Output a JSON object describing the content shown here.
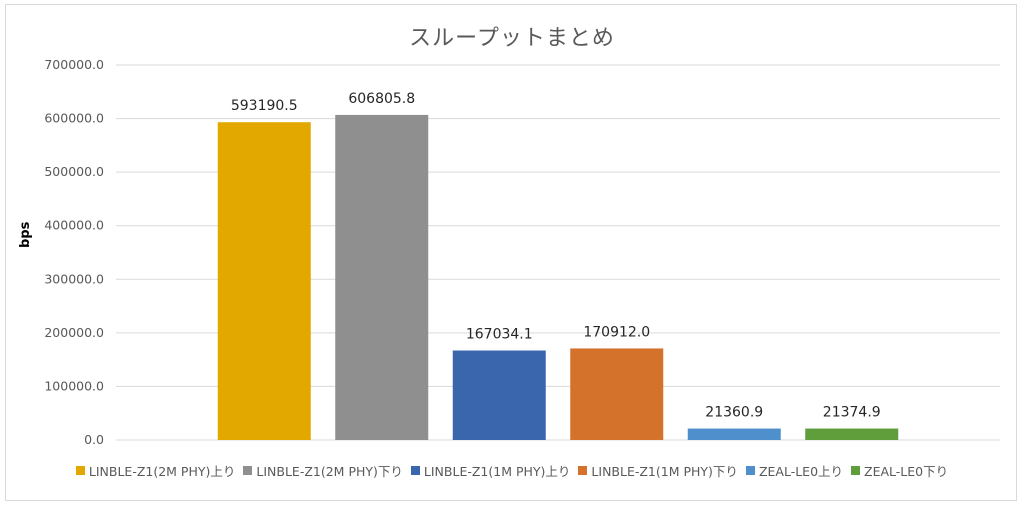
{
  "chart_data": {
    "type": "bar",
    "title": "スループットまとめ",
    "xlabel": "",
    "ylabel": "bps",
    "ylim": [
      0,
      700000
    ],
    "yticks": [
      "0.0",
      "100000.0",
      "200000.0",
      "300000.0",
      "400000.0",
      "500000.0",
      "600000.0",
      "700000.0"
    ],
    "grid": true,
    "legend_position": "bottom",
    "series": [
      {
        "name": "LINBLE-Z1(2M PHY)上り",
        "value": 593190.5,
        "label": "593190.5",
        "color": "#E2A800"
      },
      {
        "name": "LINBLE-Z1(2M PHY)下り",
        "value": 606805.8,
        "label": "606805.8",
        "color": "#8F8F8F"
      },
      {
        "name": "LINBLE-Z1(1M PHY)上り",
        "value": 167034.1,
        "label": "167034.1",
        "color": "#3A66AE"
      },
      {
        "name": "LINBLE-Z1(1M PHY)下り",
        "value": 170912.0,
        "label": "170912.0",
        "color": "#D4712A"
      },
      {
        "name": "ZEAL-LE0上り",
        "value": 21360.9,
        "label": "21360.9",
        "color": "#4E8FCC"
      },
      {
        "name": "ZEAL-LE0下り",
        "value": 21374.9,
        "label": "21374.9",
        "color": "#5F9E3A"
      }
    ]
  }
}
